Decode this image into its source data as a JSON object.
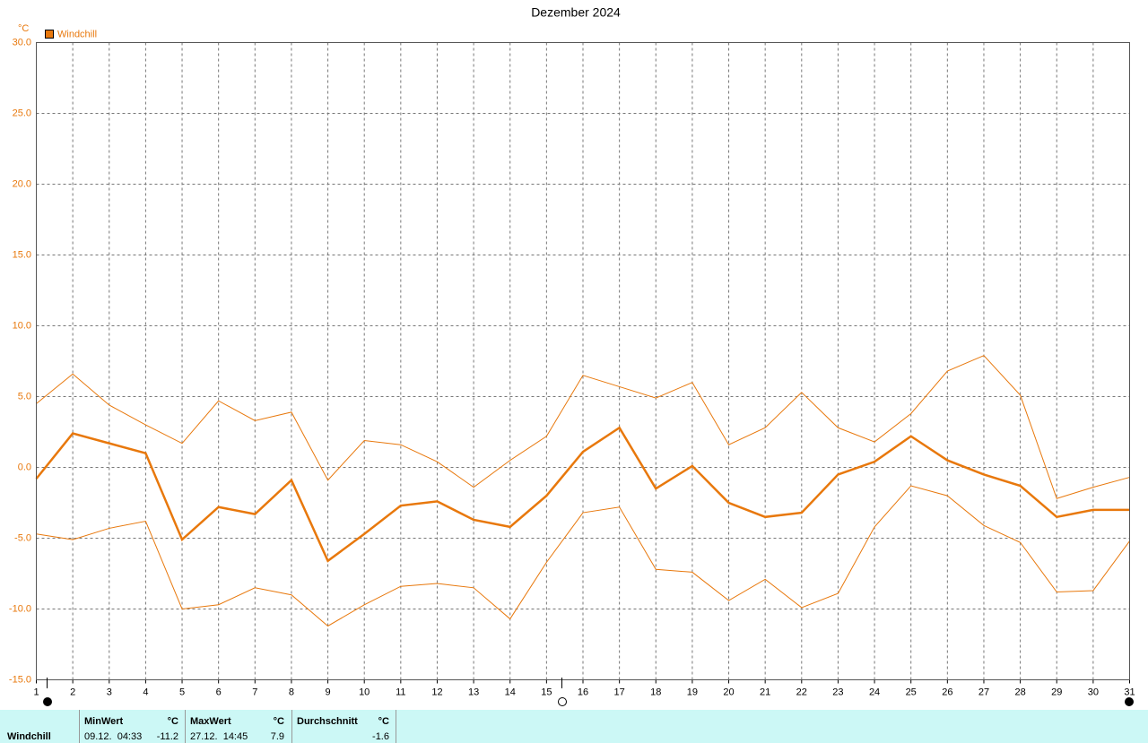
{
  "chart_data": {
    "type": "line",
    "title": "Dezember 2024",
    "y_unit": "°C",
    "legend": "top-left",
    "grid": true,
    "x": [
      1,
      2,
      3,
      4,
      5,
      6,
      7,
      8,
      9,
      10,
      11,
      12,
      13,
      14,
      15,
      16,
      17,
      18,
      19,
      20,
      21,
      22,
      23,
      24,
      25,
      26,
      27,
      28,
      29,
      30,
      31
    ],
    "xlim": [
      1,
      31
    ],
    "xticks": [
      1,
      2,
      3,
      4,
      5,
      6,
      7,
      8,
      9,
      10,
      11,
      12,
      13,
      14,
      15,
      16,
      17,
      18,
      19,
      20,
      21,
      22,
      23,
      24,
      25,
      26,
      27,
      28,
      29,
      30,
      31
    ],
    "ylim": [
      -15,
      30
    ],
    "yticks": [
      {
        "value": -15,
        "label": "-15.0"
      },
      {
        "value": -10,
        "label": "-10.0"
      },
      {
        "value": -5,
        "label": "-5.0"
      },
      {
        "value": 0,
        "label": "0.0"
      },
      {
        "value": 5,
        "label": "5.0"
      },
      {
        "value": 10,
        "label": "10.0"
      },
      {
        "value": 15,
        "label": "15.0"
      },
      {
        "value": 20,
        "label": "20.0"
      },
      {
        "value": 25,
        "label": "25.0"
      },
      {
        "value": 30,
        "label": "30.0"
      }
    ],
    "series": [
      {
        "name": "Windchill",
        "color": "#e8780c",
        "values": [
          -0.8,
          2.4,
          1.7,
          1.0,
          -5.1,
          -2.8,
          -3.3,
          -0.9,
          -6.6,
          -4.7,
          -2.7,
          -2.4,
          -3.7,
          -4.2,
          -2.0,
          1.1,
          2.8,
          -1.5,
          0.1,
          -2.5,
          -3.5,
          -3.2,
          -0.5,
          0.4,
          2.2,
          0.5,
          -0.5,
          -1.3,
          -3.5,
          -3.0,
          -3.0
        ]
      },
      {
        "color": "#e8780c",
        "values": [
          4.5,
          6.6,
          4.4,
          3.0,
          1.7,
          4.7,
          3.3,
          3.9,
          -0.9,
          1.9,
          1.6,
          0.4,
          -1.4,
          0.5,
          2.2,
          6.5,
          5.7,
          4.9,
          6.0,
          1.6,
          2.8,
          5.3,
          2.8,
          1.8,
          3.8,
          6.8,
          7.9,
          5.1,
          -2.2,
          -1.4,
          -0.7
        ]
      },
      {
        "color": "#e8780c",
        "values": [
          -4.7,
          -5.1,
          -4.3,
          -3.8,
          -10.0,
          -9.7,
          -8.5,
          -9.0,
          -11.2,
          -9.7,
          -8.4,
          -8.2,
          -8.5,
          -10.7,
          -6.7,
          -3.2,
          -2.8,
          -7.2,
          -7.4,
          -9.4,
          -7.9,
          -9.9,
          -8.9,
          -4.2,
          -1.3,
          -2.0,
          -4.1,
          -5.3,
          -8.8,
          -8.7,
          -5.2
        ]
      }
    ]
  },
  "summary": {
    "row_label": "Windchill",
    "min": {
      "header": "MinWert",
      "unit": "°C",
      "time": "09.12.  04:33",
      "value": -11.2
    },
    "max": {
      "header": "MaxWert",
      "unit": "°C",
      "time": "27.12.  14:45",
      "value": 7.9
    },
    "avg": {
      "header": "Durchschnitt",
      "unit": "°C",
      "value": -1.6
    }
  }
}
